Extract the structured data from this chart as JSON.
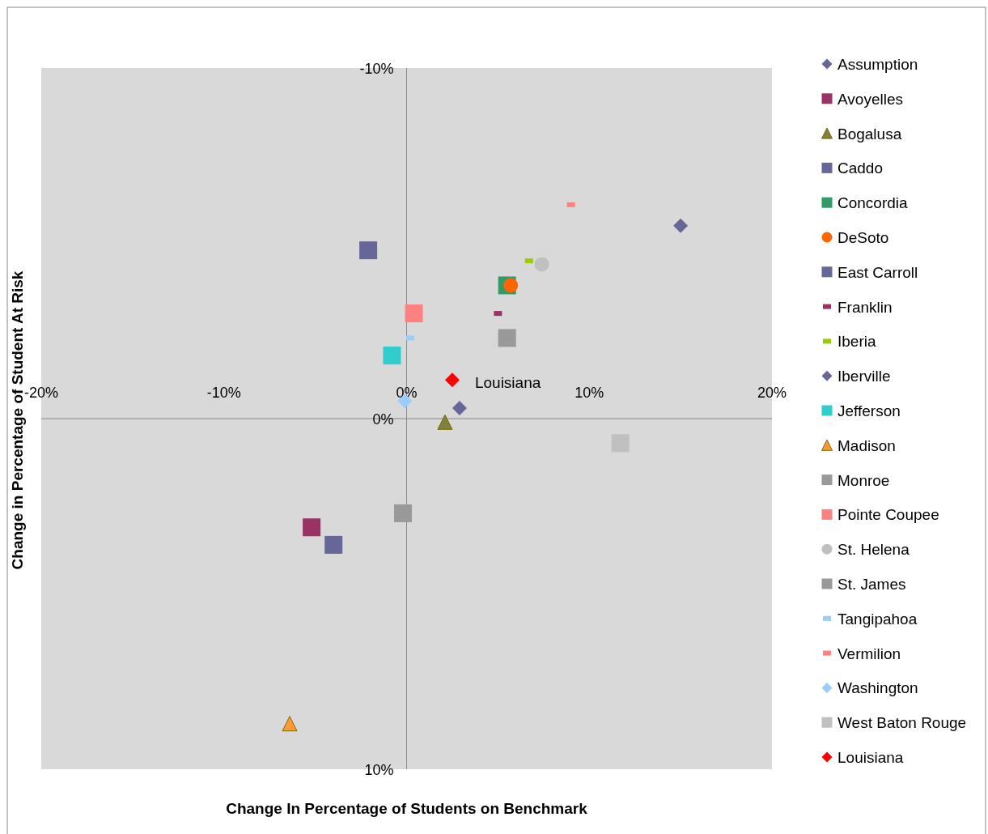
{
  "chart_data": {
    "type": "scatter",
    "xlabel": "Change In Percentage of Students on Benchmark",
    "ylabel": "Change in Percentage of Student At Risk",
    "xlim": [
      -20,
      20
    ],
    "xticks": [
      {
        "value": -20,
        "label": "-20%"
      },
      {
        "value": -10,
        "label": "-10%"
      },
      {
        "value": 0,
        "label": "0%"
      },
      {
        "value": 10,
        "label": "10%"
      },
      {
        "value": 20,
        "label": "20%"
      }
    ],
    "ylim": [
      10,
      -10
    ],
    "yticks": [
      {
        "value": -10,
        "label": "-10%"
      },
      {
        "value": 0,
        "label": "0%"
      },
      {
        "value": 10,
        "label": "10%"
      }
    ],
    "grid": false,
    "legend": "right",
    "annotations": [
      {
        "text": "Louisiana",
        "x": 2.5,
        "y": -1.1
      }
    ],
    "series": [
      {
        "name": "Assumption",
        "color": "#666699",
        "marker": "diamond",
        "x": [
          2.9
        ],
        "values": [
          -0.3
        ]
      },
      {
        "name": "Avoyelles",
        "color": "#993366",
        "marker": "square",
        "x": [
          -5.2
        ],
        "values": [
          3.1
        ]
      },
      {
        "name": "Bogalusa",
        "color": "#808040",
        "marker": "triangle",
        "x": [
          2.1
        ],
        "values": [
          0.1
        ]
      },
      {
        "name": "Caddo",
        "color": "#666699",
        "marker": "square",
        "x": [
          -2.1
        ],
        "values": [
          -4.8
        ]
      },
      {
        "name": "Concordia",
        "color": "#339966",
        "marker": "square",
        "x": [
          5.5
        ],
        "values": [
          -3.8
        ]
      },
      {
        "name": "DeSoto",
        "color": "#ff6600",
        "marker": "circle",
        "x": [
          5.7
        ],
        "values": [
          -3.8
        ]
      },
      {
        "name": "East Carroll",
        "color": "#666699",
        "marker": "square",
        "x": [
          -4.0
        ],
        "values": [
          3.6
        ]
      },
      {
        "name": "Franklin",
        "color": "#993366",
        "x": [
          5.0
        ],
        "values": [
          -3.0
        ]
      },
      {
        "name": "Iberia",
        "color": "#99cc00",
        "x": [
          6.7
        ],
        "values": [
          -4.5
        ]
      },
      {
        "name": "Iberville",
        "color": "#666699",
        "marker": "diamond",
        "x": [
          15.0
        ],
        "values": [
          -5.5
        ]
      },
      {
        "name": "Jefferson",
        "color": "#33cccc",
        "marker": "square",
        "x": [
          -0.8
        ],
        "values": [
          -1.8
        ]
      },
      {
        "name": "Madison",
        "color": "#ff9933",
        "marker": "triangle",
        "x": [
          -6.4
        ],
        "values": [
          8.7
        ]
      },
      {
        "name": "Monroe",
        "color": "#999999",
        "marker": "square",
        "x": [
          -0.2
        ],
        "values": [
          2.7
        ]
      },
      {
        "name": "Pointe Coupee",
        "color": "#ff8080",
        "marker": "square",
        "x": [
          0.4
        ],
        "values": [
          -3.0
        ]
      },
      {
        "name": "St. Helena",
        "color": "#c0c0c0",
        "marker": "circle",
        "x": [
          7.4
        ],
        "values": [
          -4.4
        ]
      },
      {
        "name": "St. James",
        "color": "#999999",
        "marker": "square",
        "x": [
          5.5
        ],
        "values": [
          -2.3
        ]
      },
      {
        "name": "Tangipahoa",
        "color": "#99ccff",
        "x": [
          0.2
        ],
        "values": [
          -2.3
        ]
      },
      {
        "name": "Vermilion",
        "color": "#ff8080",
        "x": [
          9.0
        ],
        "values": [
          -6.1
        ]
      },
      {
        "name": "Washington",
        "color": "#99ccff",
        "marker": "diamond",
        "x": [
          -0.1
        ],
        "values": [
          -0.5
        ]
      },
      {
        "name": "West Baton Rouge",
        "color": "#c0c0c0",
        "marker": "square",
        "x": [
          11.7
        ],
        "values": [
          0.7
        ]
      },
      {
        "name": "Louisiana",
        "color": "#ff0000",
        "marker": "diamond",
        "x": [
          2.5
        ],
        "values": [
          -1.1
        ]
      }
    ]
  }
}
